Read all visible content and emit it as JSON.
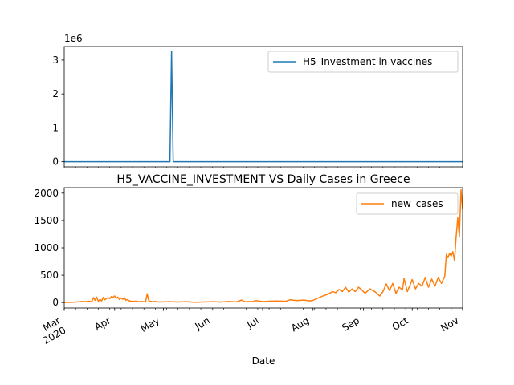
{
  "chart_data": [
    {
      "type": "line",
      "title": "",
      "xlabel": "",
      "ylabel": "",
      "y_scale_label": "1e6",
      "ylim": [
        -150000,
        3400000
      ],
      "yticks": [
        0,
        1,
        2,
        3
      ],
      "y_multiplier": 1000000,
      "xlim": [
        "2020-03-01",
        "2020-11-01"
      ],
      "grid": false,
      "legend_position": "top-right",
      "series": [
        {
          "name": "H5_Investment in vaccines",
          "color": "#1f77b4",
          "points": [
            [
              "2020-03-01",
              0
            ],
            [
              "2020-05-05",
              0
            ],
            [
              "2020-05-06",
              3250000
            ],
            [
              "2020-05-07",
              0
            ],
            [
              "2020-11-01",
              0
            ]
          ]
        }
      ]
    },
    {
      "type": "line",
      "title": "H5_VACCINE_INVESTMENT VS Daily Cases in Greece",
      "xlabel": "Date",
      "ylabel": "",
      "ylim": [
        -100,
        2100
      ],
      "yticks": [
        0,
        500,
        1000,
        1500,
        2000
      ],
      "xlim": [
        "2020-03-01",
        "2020-11-01"
      ],
      "xtick_dates": [
        "2020-03-01",
        "2020-04-01",
        "2020-05-01",
        "2020-06-01",
        "2020-07-01",
        "2020-08-01",
        "2020-09-01",
        "2020-10-01",
        "2020-11-01"
      ],
      "xtick_labels": [
        "Mar\n2020",
        "Apr",
        "May",
        "Jun",
        "Jul",
        "Aug",
        "Sep",
        "Oct",
        "Nov"
      ],
      "grid": false,
      "legend_position": "top-right",
      "series": [
        {
          "name": "new_cases",
          "color": "#ff7f0e",
          "points": [
            [
              "2020-03-01",
              2
            ],
            [
              "2020-03-05",
              5
            ],
            [
              "2020-03-08",
              8
            ],
            [
              "2020-03-12",
              20
            ],
            [
              "2020-03-14",
              15
            ],
            [
              "2020-03-16",
              25
            ],
            [
              "2020-03-18",
              18
            ],
            [
              "2020-03-19",
              90
            ],
            [
              "2020-03-20",
              40
            ],
            [
              "2020-03-21",
              100
            ],
            [
              "2020-03-22",
              20
            ],
            [
              "2020-03-23",
              60
            ],
            [
              "2020-03-24",
              30
            ],
            [
              "2020-03-25",
              95
            ],
            [
              "2020-03-26",
              50
            ],
            [
              "2020-03-27",
              75
            ],
            [
              "2020-03-28",
              90
            ],
            [
              "2020-03-29",
              70
            ],
            [
              "2020-03-30",
              110
            ],
            [
              "2020-03-31",
              95
            ],
            [
              "2020-04-01",
              120
            ],
            [
              "2020-04-02",
              75
            ],
            [
              "2020-04-03",
              100
            ],
            [
              "2020-04-04",
              55
            ],
            [
              "2020-04-05",
              85
            ],
            [
              "2020-04-06",
              60
            ],
            [
              "2020-04-07",
              90
            ],
            [
              "2020-04-08",
              40
            ],
            [
              "2020-04-09",
              55
            ],
            [
              "2020-04-10",
              30
            ],
            [
              "2020-04-12",
              20
            ],
            [
              "2020-04-14",
              25
            ],
            [
              "2020-04-16",
              15
            ],
            [
              "2020-04-18",
              20
            ],
            [
              "2020-04-20",
              10
            ],
            [
              "2020-04-21",
              160
            ],
            [
              "2020-04-22",
              30
            ],
            [
              "2020-04-24",
              15
            ],
            [
              "2020-04-26",
              20
            ],
            [
              "2020-04-28",
              10
            ],
            [
              "2020-05-01",
              12
            ],
            [
              "2020-05-05",
              15
            ],
            [
              "2020-05-10",
              10
            ],
            [
              "2020-05-15",
              15
            ],
            [
              "2020-05-20",
              5
            ],
            [
              "2020-05-25",
              10
            ],
            [
              "2020-06-01",
              15
            ],
            [
              "2020-06-05",
              8
            ],
            [
              "2020-06-10",
              20
            ],
            [
              "2020-06-15",
              12
            ],
            [
              "2020-06-18",
              45
            ],
            [
              "2020-06-20",
              15
            ],
            [
              "2020-06-25",
              20
            ],
            [
              "2020-06-27",
              35
            ],
            [
              "2020-07-01",
              18
            ],
            [
              "2020-07-05",
              25
            ],
            [
              "2020-07-10",
              28
            ],
            [
              "2020-07-15",
              22
            ],
            [
              "2020-07-18",
              50
            ],
            [
              "2020-07-22",
              35
            ],
            [
              "2020-07-26",
              45
            ],
            [
              "2020-07-30",
              30
            ],
            [
              "2020-08-01",
              40
            ],
            [
              "2020-08-04",
              80
            ],
            [
              "2020-08-07",
              120
            ],
            [
              "2020-08-10",
              150
            ],
            [
              "2020-08-13",
              200
            ],
            [
              "2020-08-15",
              180
            ],
            [
              "2020-08-17",
              240
            ],
            [
              "2020-08-19",
              200
            ],
            [
              "2020-08-21",
              280
            ],
            [
              "2020-08-23",
              190
            ],
            [
              "2020-08-25",
              250
            ],
            [
              "2020-08-27",
              200
            ],
            [
              "2020-08-29",
              280
            ],
            [
              "2020-08-31",
              230
            ],
            [
              "2020-09-02",
              170
            ],
            [
              "2020-09-05",
              250
            ],
            [
              "2020-09-08",
              200
            ],
            [
              "2020-09-11",
              120
            ],
            [
              "2020-09-13",
              200
            ],
            [
              "2020-09-15",
              340
            ],
            [
              "2020-09-17",
              220
            ],
            [
              "2020-09-19",
              350
            ],
            [
              "2020-09-21",
              170
            ],
            [
              "2020-09-23",
              280
            ],
            [
              "2020-09-25",
              230
            ],
            [
              "2020-09-26",
              440
            ],
            [
              "2020-09-28",
              200
            ],
            [
              "2020-10-01",
              420
            ],
            [
              "2020-10-03",
              250
            ],
            [
              "2020-10-05",
              350
            ],
            [
              "2020-10-07",
              300
            ],
            [
              "2020-10-09",
              460
            ],
            [
              "2020-10-11",
              280
            ],
            [
              "2020-10-13",
              430
            ],
            [
              "2020-10-15",
              300
            ],
            [
              "2020-10-17",
              460
            ],
            [
              "2020-10-19",
              350
            ],
            [
              "2020-10-21",
              480
            ],
            [
              "2020-10-22",
              880
            ],
            [
              "2020-10-23",
              820
            ],
            [
              "2020-10-24",
              900
            ],
            [
              "2020-10-25",
              850
            ],
            [
              "2020-10-26",
              930
            ],
            [
              "2020-10-27",
              760
            ],
            [
              "2020-10-28",
              1200
            ],
            [
              "2020-10-29",
              1550
            ],
            [
              "2020-10-30",
              1210
            ],
            [
              "2020-10-31",
              2060
            ],
            [
              "2020-11-01",
              1700
            ]
          ]
        }
      ]
    }
  ]
}
